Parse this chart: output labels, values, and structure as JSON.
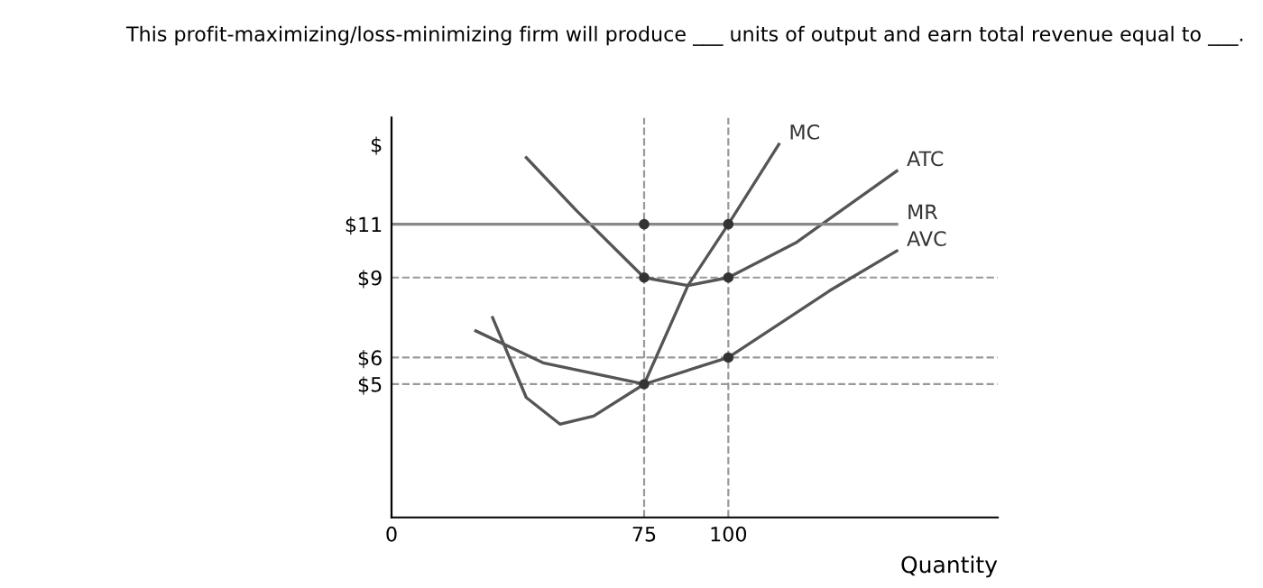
{
  "chart_data": {
    "type": "line",
    "title": "This profit-maximizing/loss-minimizing firm will produce ___ units of output and earn total revenue equal to ___.",
    "xlabel": "Quantity",
    "xlim": [
      0,
      180
    ],
    "ylim": [
      0,
      15
    ],
    "xticks": [
      0,
      75,
      100
    ],
    "yticks": [
      {
        "value": 5,
        "label": "$5"
      },
      {
        "value": 6,
        "label": "$6"
      },
      {
        "value": 9,
        "label": "$9"
      },
      {
        "value": 11,
        "label": "$11"
      },
      {
        "value": 14,
        "label": "$"
      }
    ],
    "series": [
      {
        "name": "MC",
        "color": "#555555",
        "x": [
          30,
          40,
          50,
          60,
          75,
          88,
          100,
          115
        ],
        "values": [
          7.5,
          4.5,
          3.5,
          3.8,
          5,
          8.7,
          11,
          14
        ]
      },
      {
        "name": "ATC",
        "color": "#555555",
        "x": [
          40,
          55,
          75,
          88,
          100,
          120,
          150
        ],
        "values": [
          13.5,
          11.5,
          9,
          8.7,
          9,
          10.3,
          13
        ]
      },
      {
        "name": "MR",
        "color": "#888888",
        "x": [
          0,
          150
        ],
        "values": [
          11,
          11
        ]
      },
      {
        "name": "AVC",
        "color": "#555555",
        "x": [
          25,
          45,
          75,
          100,
          130,
          150
        ],
        "values": [
          7,
          5.8,
          5,
          6,
          8.5,
          10
        ]
      },
      {
        "type": "scatter",
        "color": "#333333",
        "x": [
          75,
          100,
          75,
          100,
          75,
          100
        ],
        "values": [
          11,
          11,
          9,
          9,
          5,
          6
        ]
      }
    ],
    "ref_lines": [
      {
        "axis": "x",
        "value": 75,
        "color": "#999999",
        "line_style": "dashed"
      },
      {
        "axis": "x",
        "value": 100,
        "color": "#999999",
        "line_style": "dashed"
      },
      {
        "axis": "y",
        "value": 9,
        "color": "#999999",
        "line_style": "dashed"
      },
      {
        "axis": "y",
        "value": 6,
        "color": "#999999",
        "line_style": "dashed"
      },
      {
        "axis": "y",
        "value": 5,
        "color": "#999999",
        "line_style": "dashed"
      }
    ],
    "grid": false
  }
}
